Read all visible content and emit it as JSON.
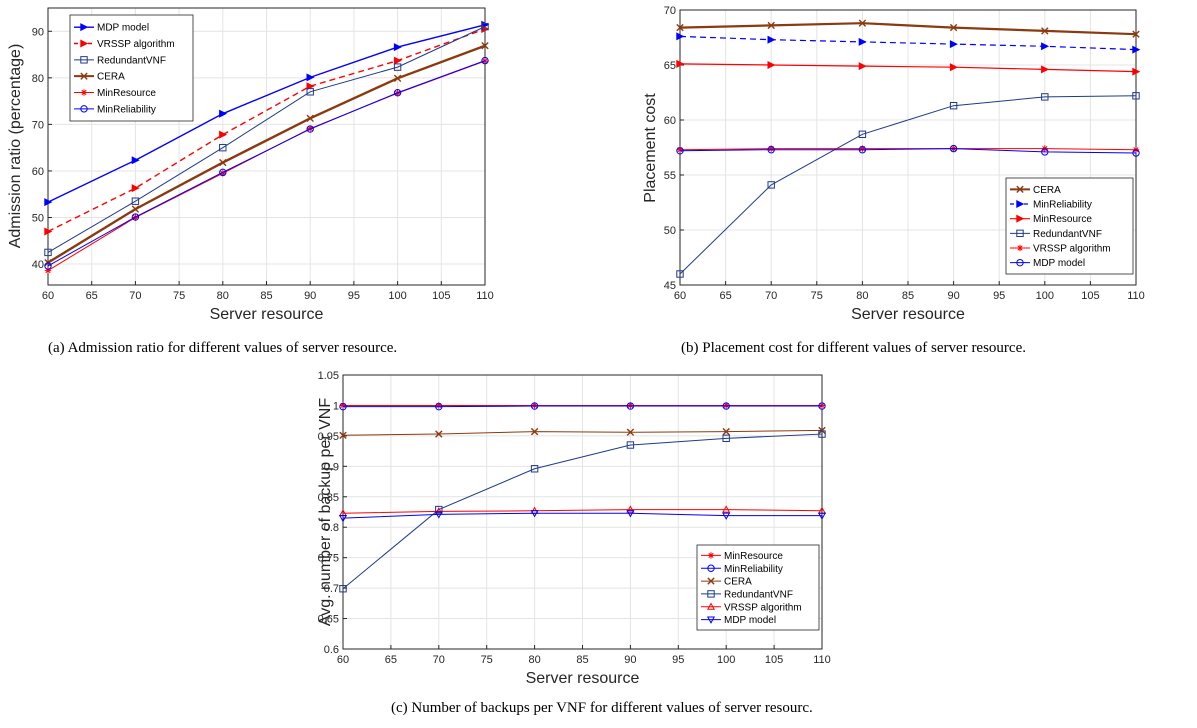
{
  "captions": {
    "a": "(a) Admission ratio for different values of server resource.",
    "b": "(b) Placement cost for different values of server resource.",
    "c": "(c) Number of backups per VNF for different values of server resourc."
  },
  "chart_data": [
    {
      "id": "a",
      "type": "line",
      "xlabel": "Server resource",
      "ylabel": "Admission ratio (percentage)",
      "xlim": [
        60,
        110
      ],
      "ylim": [
        35.5,
        95
      ],
      "xticks": [
        60,
        65,
        70,
        75,
        80,
        85,
        90,
        95,
        100,
        105,
        110
      ],
      "yticks": [
        40,
        50,
        60,
        70,
        80,
        90
      ],
      "grid": true,
      "legend_position": "top-left",
      "x": [
        60,
        70,
        80,
        90,
        100,
        110
      ],
      "series": [
        {
          "name": "MDP model",
          "values": [
            53.3,
            62.3,
            72.3,
            80.1,
            86.6,
            91.4
          ],
          "color": "#0000ff",
          "dash": "solid",
          "marker": "tri-right",
          "width": 1.4
        },
        {
          "name": "VRSSP algorithm",
          "values": [
            47.0,
            56.3,
            67.8,
            78.2,
            83.7,
            90.5
          ],
          "color": "#ff0000",
          "dash": "dashed",
          "marker": "tri-right",
          "width": 1.4
        },
        {
          "name": "RedundantVNF",
          "values": [
            42.5,
            53.5,
            65.0,
            77.0,
            82.3,
            91.0
          ],
          "color": "#1f3a8a",
          "dash": "solid",
          "marker": "square",
          "width": 1.0
        },
        {
          "name": "CERA",
          "values": [
            40.3,
            51.8,
            61.8,
            71.3,
            79.9,
            86.9
          ],
          "color": "#8b3a0f",
          "dash": "solid",
          "marker": "x",
          "width": 2.4
        },
        {
          "name": "MinResource",
          "values": [
            38.6,
            50.0,
            59.5,
            69.1,
            76.7,
            83.6
          ],
          "color": "#ff0000",
          "dash": "solid",
          "marker": "star",
          "width": 1.0
        },
        {
          "name": "MinReliability",
          "values": [
            39.6,
            50.1,
            59.7,
            69.0,
            76.8,
            83.7
          ],
          "color": "#0000ff",
          "dash": "solid",
          "marker": "circle",
          "width": 1.0
        }
      ]
    },
    {
      "id": "b",
      "type": "line",
      "xlabel": "Server resource",
      "ylabel": "Placement cost",
      "xlim": [
        60,
        110
      ],
      "ylim": [
        45,
        70
      ],
      "xticks": [
        60,
        65,
        70,
        75,
        80,
        85,
        90,
        95,
        100,
        105,
        110
      ],
      "yticks": [
        45,
        50,
        55,
        60,
        65,
        70
      ],
      "grid": true,
      "legend_position": "bottom-right",
      "x": [
        60,
        70,
        80,
        90,
        100,
        110
      ],
      "series": [
        {
          "name": "CERA",
          "values": [
            68.4,
            68.6,
            68.8,
            68.4,
            68.1,
            67.8
          ],
          "color": "#8b3a0f",
          "dash": "solid",
          "marker": "x",
          "width": 2.2
        },
        {
          "name": "MinReliability",
          "values": [
            67.6,
            67.3,
            67.1,
            66.9,
            66.7,
            66.4
          ],
          "color": "#0000ff",
          "dash": "dashed",
          "marker": "tri-right",
          "width": 1.2
        },
        {
          "name": "MinResource",
          "values": [
            65.1,
            65.0,
            64.9,
            64.8,
            64.6,
            64.4
          ],
          "color": "#ff0000",
          "dash": "solid",
          "marker": "tri-right",
          "width": 1.2
        },
        {
          "name": "RedundantVNF",
          "values": [
            46.0,
            54.1,
            58.7,
            61.3,
            62.1,
            62.2
          ],
          "color": "#1f3a8a",
          "dash": "solid",
          "marker": "square",
          "width": 1.0
        },
        {
          "name": "VRSSP algorithm",
          "values": [
            57.3,
            57.4,
            57.4,
            57.4,
            57.4,
            57.3
          ],
          "color": "#ff0000",
          "dash": "solid",
          "marker": "star",
          "width": 1.0
        },
        {
          "name": "MDP model",
          "values": [
            57.2,
            57.3,
            57.3,
            57.4,
            57.1,
            57.0
          ],
          "color": "#0000ff",
          "dash": "solid",
          "marker": "circle",
          "width": 1.0
        }
      ]
    },
    {
      "id": "c",
      "type": "line",
      "xlabel": "Server resource",
      "ylabel": "Avg. number of backup per VNF",
      "xlim": [
        60,
        110
      ],
      "ylim": [
        0.6,
        1.05
      ],
      "xticks": [
        60,
        65,
        70,
        75,
        80,
        85,
        90,
        95,
        100,
        105,
        110
      ],
      "yticks": [
        0.6,
        0.65,
        0.7,
        0.75,
        0.8,
        0.85,
        0.9,
        0.95,
        1,
        1.05
      ],
      "ytick_labels": [
        "0.6",
        "0.65",
        "0.7",
        "0.75",
        "0.8",
        "0.85",
        "0.9",
        "0.95",
        "1",
        "1.05"
      ],
      "grid": true,
      "legend_position": "bottom-right",
      "x": [
        60,
        70,
        80,
        90,
        100,
        110
      ],
      "series": [
        {
          "name": "MinResource",
          "values": [
            1.0,
            1.0,
            1.0,
            1.0,
            1.0,
            1.0
          ],
          "color": "#ff0000",
          "dash": "solid",
          "marker": "star",
          "width": 1.0
        },
        {
          "name": "MinReliability",
          "values": [
            0.998,
            0.998,
            0.999,
            0.999,
            0.999,
            0.999
          ],
          "color": "#0000ff",
          "dash": "solid",
          "marker": "circle",
          "width": 1.0
        },
        {
          "name": "CERA",
          "values": [
            0.951,
            0.953,
            0.957,
            0.956,
            0.957,
            0.959
          ],
          "color": "#8b3a0f",
          "dash": "solid",
          "marker": "x",
          "width": 1.0
        },
        {
          "name": "RedundantVNF",
          "values": [
            0.699,
            0.829,
            0.896,
            0.935,
            0.946,
            0.953
          ],
          "color": "#1f3a8a",
          "dash": "solid",
          "marker": "square",
          "width": 1.0
        },
        {
          "name": "VRSSP algorithm",
          "values": [
            0.823,
            0.826,
            0.827,
            0.829,
            0.829,
            0.827
          ],
          "color": "#ff0000",
          "dash": "solid",
          "marker": "tri-up",
          "width": 1.0
        },
        {
          "name": "MDP model",
          "values": [
            0.815,
            0.821,
            0.823,
            0.823,
            0.819,
            0.819
          ],
          "color": "#0000ff",
          "dash": "solid",
          "marker": "tri-down",
          "width": 1.0
        }
      ]
    }
  ]
}
